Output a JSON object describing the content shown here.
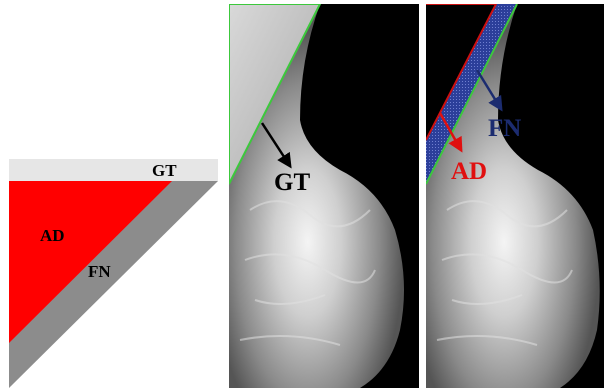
{
  "schematic": {
    "labels": {
      "ground_truth": "GT",
      "adjusted": "AD",
      "false_negative": "FN"
    }
  },
  "mammogram_left": {
    "labels": {
      "ground_truth": "GT"
    }
  },
  "mammogram_right": {
    "labels": {
      "false_negative": "FN",
      "adjusted": "AD"
    }
  },
  "colors": {
    "adjusted_red": "#ff0000",
    "false_negative_gray": "#8c8c8c",
    "ground_truth_band": "#e6e6e6",
    "contour_green": "#3cc83c",
    "fn_blue": "#2c3f9a",
    "arrow_black": "#000000",
    "ad_label_red": "#e01010",
    "fn_label_navy": "#1c2c70"
  }
}
